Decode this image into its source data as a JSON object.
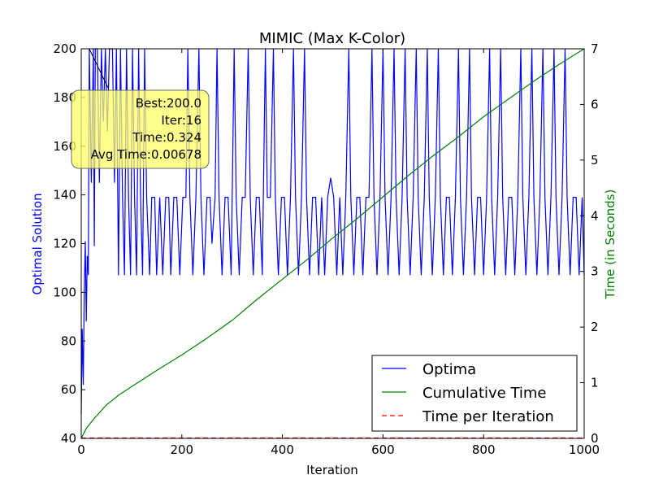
{
  "chart_data": {
    "type": "line",
    "title": "MIMIC (Max K-Color)",
    "xlabel": "Iteration",
    "ylabel_left": "Optimal Solution",
    "ylabel_right": "Time (in Seconds)",
    "xlim": [
      0,
      1000
    ],
    "ylim_left": [
      40,
      200
    ],
    "ylim_right": [
      0,
      7
    ],
    "x_ticks": [
      0,
      200,
      400,
      600,
      800,
      1000
    ],
    "y_ticks_left": [
      40,
      60,
      80,
      100,
      120,
      140,
      160,
      180,
      200
    ],
    "y_ticks_right": [
      0,
      1,
      2,
      3,
      4,
      5,
      6,
      7
    ],
    "grid": false,
    "legend_position": "lower-right",
    "colors": {
      "optima": "#0000ff",
      "cumulative": "#008000",
      "per_iteration": "#ff0000",
      "ylabel_left": "#0000ff",
      "ylabel_right": "#008000",
      "annotation_bg": "#ffff66"
    },
    "series": [
      {
        "name": "Optima",
        "axis": "left",
        "style": "solid",
        "points": [
          [
            0,
            50
          ],
          [
            2,
            85
          ],
          [
            4,
            62
          ],
          [
            6,
            100
          ],
          [
            8,
            121
          ],
          [
            10,
            88
          ],
          [
            12,
            115
          ],
          [
            14,
            107
          ],
          [
            16,
            200
          ],
          [
            20,
            145
          ],
          [
            24,
            200
          ],
          [
            26,
            119
          ],
          [
            28,
            200
          ],
          [
            32,
            200
          ],
          [
            36,
            145
          ],
          [
            40,
            200
          ],
          [
            44,
            170
          ],
          [
            48,
            200
          ],
          [
            52,
            166
          ],
          [
            56,
            200
          ],
          [
            62,
            200
          ],
          [
            66,
            145
          ],
          [
            70,
            200
          ],
          [
            74,
            107
          ],
          [
            78,
            200
          ],
          [
            82,
            139
          ],
          [
            86,
            107
          ],
          [
            90,
            200
          ],
          [
            94,
            139
          ],
          [
            98,
            107
          ],
          [
            102,
            200
          ],
          [
            106,
            139
          ],
          [
            110,
            107
          ],
          [
            114,
            200
          ],
          [
            118,
            139
          ],
          [
            122,
            107
          ],
          [
            126,
            200
          ],
          [
            130,
            139
          ],
          [
            136,
            107
          ],
          [
            140,
            139
          ],
          [
            146,
            139
          ],
          [
            150,
            107
          ],
          [
            156,
            139
          ],
          [
            162,
            107
          ],
          [
            168,
            139
          ],
          [
            174,
            139
          ],
          [
            178,
            107
          ],
          [
            184,
            139
          ],
          [
            190,
            139
          ],
          [
            196,
            107
          ],
          [
            202,
            139
          ],
          [
            208,
            139
          ],
          [
            212,
            200
          ],
          [
            216,
            139
          ],
          [
            222,
            107
          ],
          [
            228,
            139
          ],
          [
            234,
            200
          ],
          [
            238,
            139
          ],
          [
            244,
            107
          ],
          [
            250,
            139
          ],
          [
            256,
            139
          ],
          [
            260,
            120
          ],
          [
            266,
            139
          ],
          [
            270,
            200
          ],
          [
            274,
            139
          ],
          [
            280,
            107
          ],
          [
            286,
            139
          ],
          [
            292,
            139
          ],
          [
            298,
            107
          ],
          [
            304,
            200
          ],
          [
            308,
            139
          ],
          [
            314,
            107
          ],
          [
            320,
            139
          ],
          [
            326,
            139
          ],
          [
            332,
            200
          ],
          [
            336,
            139
          ],
          [
            342,
            107
          ],
          [
            348,
            139
          ],
          [
            354,
            139
          ],
          [
            360,
            107
          ],
          [
            366,
            200
          ],
          [
            370,
            139
          ],
          [
            376,
            139
          ],
          [
            382,
            200
          ],
          [
            386,
            139
          ],
          [
            392,
            107
          ],
          [
            398,
            139
          ],
          [
            404,
            139
          ],
          [
            410,
            107
          ],
          [
            416,
            139
          ],
          [
            422,
            200
          ],
          [
            426,
            139
          ],
          [
            432,
            107
          ],
          [
            438,
            139
          ],
          [
            444,
            200
          ],
          [
            448,
            139
          ],
          [
            454,
            107
          ],
          [
            460,
            139
          ],
          [
            466,
            139
          ],
          [
            472,
            107
          ],
          [
            478,
            139
          ],
          [
            484,
            107
          ],
          [
            490,
            139
          ],
          [
            496,
            147
          ],
          [
            502,
            139
          ],
          [
            508,
            107
          ],
          [
            514,
            139
          ],
          [
            520,
            107
          ],
          [
            526,
            139
          ],
          [
            532,
            200
          ],
          [
            536,
            139
          ],
          [
            542,
            107
          ],
          [
            548,
            139
          ],
          [
            554,
            139
          ],
          [
            560,
            107
          ],
          [
            566,
            139
          ],
          [
            572,
            139
          ],
          [
            578,
            200
          ],
          [
            582,
            139
          ],
          [
            588,
            107
          ],
          [
            594,
            139
          ],
          [
            600,
            200
          ],
          [
            604,
            139
          ],
          [
            610,
            107
          ],
          [
            616,
            139
          ],
          [
            622,
            200
          ],
          [
            626,
            139
          ],
          [
            632,
            107
          ],
          [
            638,
            139
          ],
          [
            644,
            200
          ],
          [
            648,
            139
          ],
          [
            654,
            107
          ],
          [
            660,
            139
          ],
          [
            666,
            200
          ],
          [
            670,
            139
          ],
          [
            676,
            107
          ],
          [
            682,
            139
          ],
          [
            688,
            200
          ],
          [
            692,
            139
          ],
          [
            698,
            107
          ],
          [
            704,
            139
          ],
          [
            710,
            200
          ],
          [
            714,
            139
          ],
          [
            720,
            107
          ],
          [
            726,
            139
          ],
          [
            732,
            139
          ],
          [
            738,
            107
          ],
          [
            744,
            139
          ],
          [
            750,
            200
          ],
          [
            754,
            139
          ],
          [
            760,
            107
          ],
          [
            766,
            139
          ],
          [
            772,
            200
          ],
          [
            776,
            139
          ],
          [
            782,
            107
          ],
          [
            788,
            139
          ],
          [
            794,
            139
          ],
          [
            800,
            107
          ],
          [
            806,
            139
          ],
          [
            812,
            200
          ],
          [
            816,
            139
          ],
          [
            822,
            107
          ],
          [
            828,
            139
          ],
          [
            834,
            200
          ],
          [
            838,
            139
          ],
          [
            844,
            107
          ],
          [
            850,
            139
          ],
          [
            856,
            139
          ],
          [
            862,
            107
          ],
          [
            868,
            139
          ],
          [
            874,
            200
          ],
          [
            878,
            139
          ],
          [
            884,
            107
          ],
          [
            890,
            139
          ],
          [
            896,
            200
          ],
          [
            900,
            139
          ],
          [
            906,
            107
          ],
          [
            912,
            139
          ],
          [
            918,
            200
          ],
          [
            922,
            139
          ],
          [
            928,
            107
          ],
          [
            934,
            139
          ],
          [
            940,
            200
          ],
          [
            944,
            139
          ],
          [
            950,
            107
          ],
          [
            956,
            139
          ],
          [
            962,
            200
          ],
          [
            966,
            139
          ],
          [
            972,
            107
          ],
          [
            978,
            139
          ],
          [
            984,
            139
          ],
          [
            990,
            107
          ],
          [
            996,
            139
          ],
          [
            1000,
            107
          ]
        ]
      },
      {
        "name": "Cumulative Time",
        "axis": "right",
        "style": "solid",
        "points": [
          [
            0,
            0.0
          ],
          [
            10,
            0.18
          ],
          [
            25,
            0.35
          ],
          [
            50,
            0.6
          ],
          [
            75,
            0.78
          ],
          [
            100,
            0.93
          ],
          [
            150,
            1.22
          ],
          [
            200,
            1.5
          ],
          [
            250,
            1.8
          ],
          [
            300,
            2.12
          ],
          [
            350,
            2.5
          ],
          [
            400,
            2.86
          ],
          [
            450,
            3.22
          ],
          [
            500,
            3.6
          ],
          [
            550,
            3.96
          ],
          [
            600,
            4.34
          ],
          [
            650,
            4.72
          ],
          [
            700,
            5.08
          ],
          [
            750,
            5.42
          ],
          [
            800,
            5.78
          ],
          [
            850,
            6.1
          ],
          [
            900,
            6.42
          ],
          [
            950,
            6.72
          ],
          [
            1000,
            7.0
          ]
        ]
      },
      {
        "name": "Time per Iteration",
        "axis": "right",
        "style": "dashed",
        "points": [
          [
            0,
            0.0068
          ],
          [
            1000,
            0.0068
          ]
        ]
      }
    ],
    "annotation": {
      "lines": [
        "Best:200.0",
        "Iter:16",
        "Time:0.324",
        "Avg Time:0.00678"
      ],
      "x": 16,
      "y": 200
    }
  }
}
